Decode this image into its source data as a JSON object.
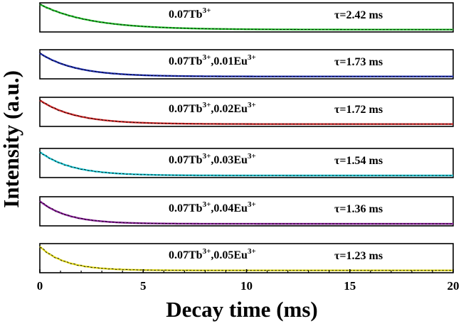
{
  "chart_data": {
    "type": "line",
    "title": "",
    "xlabel": "Decay time (ms)",
    "ylabel": "Intensity (a.u.)",
    "xlim": [
      0,
      20
    ],
    "xticks": [
      0,
      5,
      10,
      15,
      20
    ],
    "grid": false,
    "panels": [
      {
        "sample_base": "0.07Tb",
        "sample_base_sup": "3+",
        "sample_extra": "",
        "sample_extra_sup": "",
        "tau_label": "τ=2.42 ms",
        "tau_ms": 2.42,
        "color": "#22c12a",
        "start": 0.95,
        "floor": 0.08
      },
      {
        "sample_base": "0.07Tb",
        "sample_base_sup": "3+",
        "sample_extra": ",0.01Eu",
        "sample_extra_sup": "3+",
        "tau_label": "τ=1.73 ms",
        "tau_ms": 1.73,
        "color": "#1f2fb4",
        "start": 0.88,
        "floor": 0.08
      },
      {
        "sample_base": "0.07Tb",
        "sample_base_sup": "3+",
        "sample_extra": ",0.02Eu",
        "sample_extra_sup": "3+",
        "tau_label": "τ=1.72 ms",
        "tau_ms": 1.72,
        "color": "#d42a2a",
        "start": 0.9,
        "floor": 0.08
      },
      {
        "sample_base": "0.07Tb",
        "sample_base_sup": "3+",
        "sample_extra": ",0.03Eu",
        "sample_extra_sup": "3+",
        "tau_label": "τ=1.54 ms",
        "tau_ms": 1.54,
        "color": "#1ec9d6",
        "start": 0.88,
        "floor": 0.07
      },
      {
        "sample_base": "0.07Tb",
        "sample_base_sup": "3+",
        "sample_extra": ",0.04Eu",
        "sample_extra_sup": "3+",
        "tau_label": "τ=1.36 ms",
        "tau_ms": 1.36,
        "color": "#8a1f9a",
        "start": 0.85,
        "floor": 0.07
      },
      {
        "sample_base": "0.07Tb",
        "sample_base_sup": "3+",
        "sample_extra": ",0.05Eu",
        "sample_extra_sup": "3+",
        "tau_label": "τ=1.23 ms",
        "tau_ms": 1.23,
        "color": "#e8e020",
        "start": 0.9,
        "floor": 0.08
      }
    ]
  }
}
